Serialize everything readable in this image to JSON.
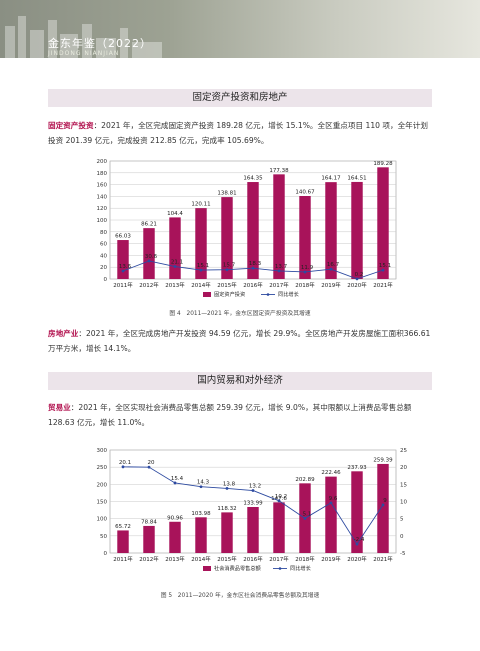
{
  "header": {
    "title": "金东年鉴（2022）",
    "subtitle": "JINDONG NIANJIAN"
  },
  "section1": {
    "title": "固定资产投资和房地产",
    "p1_kw": "固定资产投资",
    "p1_text": "：2021 年，全区完成固定资产投资 189.28 亿元，增长 15.1%。全区重点项目 110 项，全年计划投资 201.39 亿元，完成投资 212.85 亿元，完成率 105.69%。",
    "p2_kw": "房地产业",
    "p2_text": "：2021 年，全区完成房地产开发投资 94.59 亿元，增长 29.9%。全区房地产开发房屋施工面积366.61 万平方米，增长 14.1%。",
    "caption": "图 4　2011—2021 年，金东区固定资产投资及其增速"
  },
  "section2": {
    "title": "国内贸易和对外经济",
    "p1_kw": "贸易业",
    "p1_text": "：2021 年，全区实现社会消费品零售总额 259.39 亿元，增长 9.0%，其中限额以上消费品零售总额 128.63 亿元，增长 11.0%。",
    "caption": "图 5　2011—2020 年，金东区社会消费品零售总额及其增速"
  },
  "colors": {
    "bar": "#a8135a",
    "line": "#2d4aa0",
    "title_bg": "#ece4ea",
    "keyword": "#b2124f"
  },
  "chart_data": [
    {
      "type": "bar",
      "categories": [
        "2011年",
        "2012年",
        "2013年",
        "2014年",
        "2015年",
        "2016年",
        "2017年",
        "2018年",
        "2019年",
        "2020年",
        "2021年"
      ],
      "ylim": [
        0,
        200
      ],
      "yticks": [
        0,
        20,
        40,
        60,
        80,
        100,
        120,
        140,
        160,
        180,
        200
      ],
      "series": [
        {
          "name": "固定资产投资",
          "type": "bar",
          "values": [
            66.03,
            86.21,
            104.4,
            120.11,
            138.81,
            164.35,
            177.38,
            140.67,
            164.17,
            164.51,
            189.28
          ]
        },
        {
          "name": "同比增长",
          "type": "line",
          "values": [
            13.6,
            30.6,
            21.1,
            15.1,
            15.7,
            18.3,
            13.7,
            11.9,
            16.7,
            0.2,
            15.1
          ]
        }
      ],
      "grid": true,
      "legend": "bottom"
    },
    {
      "type": "bar",
      "categories": [
        "2011年",
        "2012年",
        "2013年",
        "2014年",
        "2015年",
        "2016年",
        "2017年",
        "2018年",
        "2019年",
        "2020年",
        "2021年"
      ],
      "ylim": [
        0,
        300
      ],
      "yticks": [
        0,
        50,
        100,
        150,
        200,
        250,
        300
      ],
      "y2lim": [
        -5,
        25
      ],
      "y2ticks": [
        -5,
        0,
        5,
        10,
        15,
        20,
        25
      ],
      "series": [
        {
          "name": "社会消费品零售总额",
          "type": "bar",
          "values": [
            65.72,
            78.84,
            90.96,
            103.98,
            118.32,
            133.99,
            147.6,
            202.89,
            222.46,
            237.93,
            259.39
          ]
        },
        {
          "name": "同比增长",
          "type": "line",
          "values": [
            20.1,
            20,
            15.4,
            14.3,
            13.8,
            13.2,
            10.2,
            5.1,
            9.6,
            -2.4,
            9
          ]
        }
      ],
      "grid": true,
      "legend": "bottom"
    }
  ]
}
